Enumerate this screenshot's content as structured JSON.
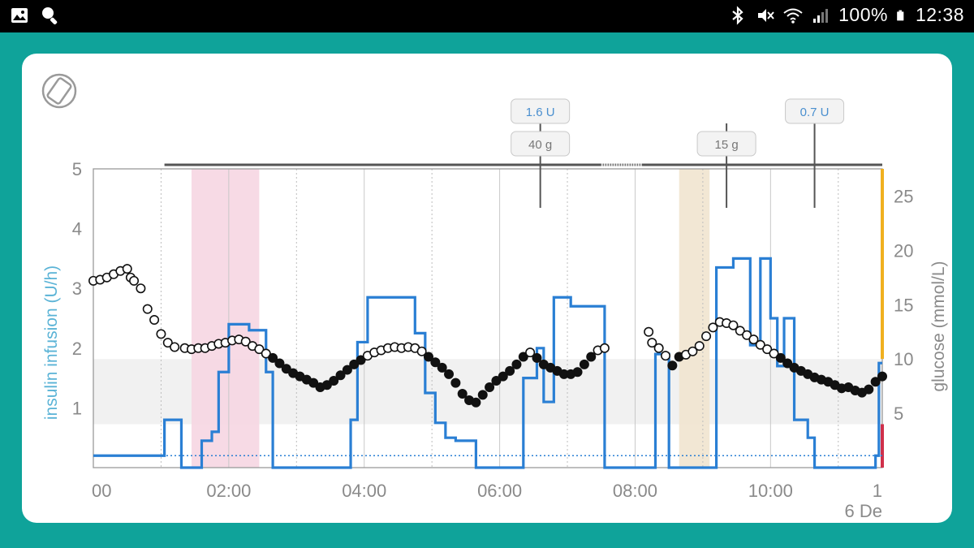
{
  "status_bar": {
    "left_icons": [
      "image-icon",
      "search-icon"
    ],
    "right_icons": [
      "bluetooth-icon",
      "mute-icon",
      "wifi-icon",
      "signal-icon",
      "battery-icon"
    ],
    "battery_percent": "100%",
    "time": "12:38"
  },
  "colors": {
    "teal_background": "#0fa39a",
    "insulin_line": "#2a7fd4",
    "glucose_axis": "#777777",
    "target_band": "#f1f1f1",
    "pink_band": "#f6d6e2",
    "tan_band": "#f1e4cf",
    "right_edge_orange": "#f0b020",
    "right_edge_red": "#d0304a"
  },
  "chart_data": {
    "type": "line",
    "left_axis": {
      "label": "insulin infusion (U/h)",
      "range": [
        0,
        5
      ],
      "ticks": [
        "1",
        "2",
        "3",
        "4",
        "5"
      ]
    },
    "right_axis": {
      "label": "glucose (mmol/L)",
      "range": [
        0,
        27.5
      ],
      "ticks": [
        "5",
        "10",
        "15",
        "20",
        "25"
      ]
    },
    "x_axis": {
      "range": [
        0,
        11.65
      ],
      "tick_hours": [
        0,
        2,
        4,
        6,
        8,
        10,
        11.65
      ],
      "tick_labels": [
        "00",
        "02:00",
        "04:00",
        "06:00",
        "08:00",
        "10:00",
        "1"
      ],
      "date_label": "6 De"
    },
    "target_range_mmol": [
      4,
      10
    ],
    "shaded_periods": [
      {
        "start": 1.45,
        "end": 2.45,
        "color": "pink"
      },
      {
        "start": 8.65,
        "end": 9.1,
        "color": "tan"
      }
    ],
    "annotations": [
      {
        "x": 6.6,
        "top_text": "1.6 U",
        "bottom_text": "40 g"
      },
      {
        "x": 9.35,
        "top_text": "",
        "bottom_text": "15 g"
      },
      {
        "x": 10.65,
        "top_text": "0.7 U",
        "bottom_text": ""
      }
    ],
    "insulin_series": {
      "name": "insulin infusion",
      "x": [
        0,
        1.05,
        1.05,
        1.3,
        1.3,
        1.6,
        1.6,
        1.75,
        1.75,
        1.85,
        1.85,
        2.0,
        2.0,
        2.1,
        2.1,
        2.3,
        2.3,
        2.55,
        2.55,
        2.65,
        2.65,
        2.65,
        2.65,
        2.65,
        2.65,
        2.65,
        2.65,
        2.65,
        2.65,
        2.65,
        2.75,
        2.75,
        2.65,
        2.65,
        2.65,
        2.65
      ],
      "y": [
        0.2,
        0.2,
        0.8,
        0.8,
        0,
        0,
        0.45,
        0.45,
        0.6,
        0.6,
        1.6,
        1.6,
        2.4,
        2.4,
        2.3,
        2.3,
        1.6,
        1.6,
        0,
        0,
        0,
        0,
        0,
        0,
        0,
        0,
        0,
        0,
        0,
        0,
        0,
        0,
        0,
        0,
        0,
        0
      ]
    },
    "insulin_steps": [
      [
        0,
        0.2
      ],
      [
        1.05,
        0.8
      ],
      [
        1.3,
        0
      ],
      [
        1.6,
        0.45
      ],
      [
        1.75,
        0.6
      ],
      [
        1.85,
        1.6
      ],
      [
        2.0,
        2.4
      ],
      [
        2.3,
        2.3
      ],
      [
        2.55,
        1.6
      ],
      [
        2.65,
        0
      ],
      [
        3.8,
        0.8
      ],
      [
        3.9,
        2.1
      ],
      [
        4.05,
        2.85
      ],
      [
        4.75,
        2.25
      ],
      [
        4.9,
        1.25
      ],
      [
        5.05,
        0.75
      ],
      [
        5.2,
        0.5
      ],
      [
        5.35,
        0.45
      ],
      [
        5.65,
        0
      ],
      [
        6.35,
        1.5
      ],
      [
        6.55,
        2.0
      ],
      [
        6.65,
        1.1
      ],
      [
        6.8,
        2.85
      ],
      [
        7.05,
        2.7
      ],
      [
        7.55,
        0
      ],
      [
        7.95,
        0
      ],
      [
        8.3,
        1.9
      ],
      [
        8.5,
        0
      ],
      [
        9.2,
        3.35
      ],
      [
        9.45,
        3.5
      ],
      [
        9.7,
        2.05
      ],
      [
        9.85,
        3.5
      ],
      [
        10.0,
        2.5
      ],
      [
        10.1,
        1.7
      ],
      [
        10.2,
        2.5
      ],
      [
        10.35,
        0.8
      ],
      [
        10.55,
        0.5
      ],
      [
        10.65,
        0
      ],
      [
        11.55,
        0.2
      ],
      [
        11.6,
        1.75
      ],
      [
        11.65,
        1.75
      ]
    ],
    "glucose_series": {
      "name": "glucose",
      "x": [
        0.0,
        0.1,
        0.2,
        0.3,
        0.4,
        0.5,
        0.55,
        0.6,
        0.7,
        0.8,
        0.9,
        1.0,
        1.1,
        1.2,
        1.35,
        1.45,
        1.55,
        1.65,
        1.75,
        1.85,
        1.95,
        2.05,
        2.15,
        2.25,
        2.35,
        2.45,
        2.55,
        2.65,
        2.75,
        2.85,
        2.95,
        3.05,
        3.15,
        3.25,
        3.35,
        3.45,
        3.55,
        3.65,
        3.75,
        3.85,
        3.95,
        4.05,
        4.15,
        4.25,
        4.35,
        4.45,
        4.55,
        4.65,
        4.75,
        4.85,
        4.95,
        5.05,
        5.15,
        5.25,
        5.35,
        5.45,
        5.55,
        5.65,
        5.75,
        5.85,
        5.95,
        6.05,
        6.15,
        6.25,
        6.35,
        6.45,
        6.55,
        6.65,
        6.75,
        6.85,
        6.95,
        7.05,
        7.15,
        7.25,
        7.35,
        7.45,
        7.55,
        8.2,
        8.25,
        8.35,
        8.45,
        8.55,
        8.65,
        8.75,
        8.85,
        8.95,
        9.05,
        9.15,
        9.25,
        9.35,
        9.45,
        9.55,
        9.65,
        9.75,
        9.85,
        9.95,
        10.05,
        10.15,
        10.25,
        10.35,
        10.45,
        10.55,
        10.65,
        10.75,
        10.85,
        10.95,
        11.05,
        11.15,
        11.25,
        11.35,
        11.45,
        11.55,
        11.65
      ],
      "y": [
        17.2,
        17.3,
        17.5,
        17.8,
        18.1,
        18.3,
        17.5,
        17.2,
        16.5,
        14.6,
        13.6,
        12.3,
        11.5,
        11.1,
        11.0,
        10.9,
        11.0,
        11.0,
        11.2,
        11.4,
        11.5,
        11.7,
        11.8,
        11.6,
        11.2,
        10.9,
        10.5,
        10.1,
        9.6,
        9.1,
        8.7,
        8.4,
        8.1,
        7.8,
        7.4,
        7.6,
        8.0,
        8.5,
        9.0,
        9.5,
        9.9,
        10.3,
        10.6,
        10.8,
        11.0,
        11.1,
        11.0,
        11.1,
        11.0,
        10.7,
        10.2,
        9.7,
        9.2,
        8.6,
        7.8,
        6.8,
        6.2,
        6.0,
        6.7,
        7.4,
        8.0,
        8.4,
        8.9,
        9.5,
        10.2,
        10.6,
        10.1,
        9.5,
        9.2,
        8.9,
        8.6,
        8.6,
        8.8,
        9.5,
        10.2,
        10.8,
        11.0,
        12.5,
        11.5,
        11.0,
        10.3,
        9.4,
        10.2,
        10.4,
        10.7,
        11.2,
        12.1,
        12.9,
        13.4,
        13.3,
        13.1,
        12.6,
        12.2,
        11.8,
        11.3,
        10.9,
        10.5,
        10.1,
        9.6,
        9.2,
        8.9,
        8.6,
        8.3,
        8.1,
        7.9,
        7.6,
        7.3,
        7.4,
        7.1,
        6.9,
        7.2,
        7.9,
        8.4
      ],
      "filled_from_index": 0
    },
    "grid": true,
    "legend": "none"
  }
}
